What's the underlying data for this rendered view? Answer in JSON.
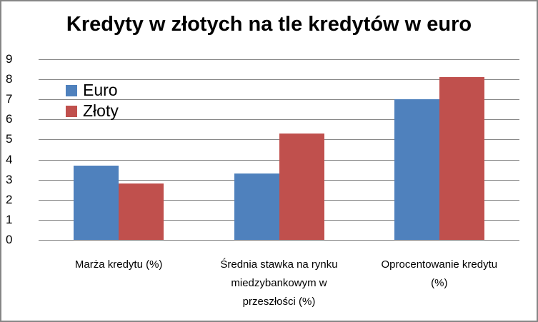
{
  "chart_data": {
    "type": "bar",
    "title": "Kredyty w złotych na tle kredytów w euro",
    "xlabel": "",
    "ylabel": "",
    "ylim": [
      0,
      9
    ],
    "yticks": [
      "0",
      "1",
      "2",
      "3",
      "4",
      "5",
      "6",
      "7",
      "8",
      "9"
    ],
    "grid": true,
    "legend_position": "top-left-inside",
    "categories": [
      "Marża kredytu (%)",
      "Średnia stawka na rynku miedzybankowym w przeszłości (%)",
      "Oprocentowanie kredytu (%)"
    ],
    "category_lines": [
      [
        "Marża kredytu (%)"
      ],
      [
        "Średnia stawka na rynku",
        "miedzybankowym w",
        "przeszłości (%)"
      ],
      [
        "Oprocentowanie kredytu",
        "(%)"
      ]
    ],
    "series": [
      {
        "name": "Euro",
        "color": "#4f81bd",
        "values": [
          3.7,
          3.3,
          7.0
        ]
      },
      {
        "name": "Złoty",
        "color": "#c0504d",
        "values": [
          2.8,
          5.3,
          8.1
        ]
      }
    ]
  }
}
